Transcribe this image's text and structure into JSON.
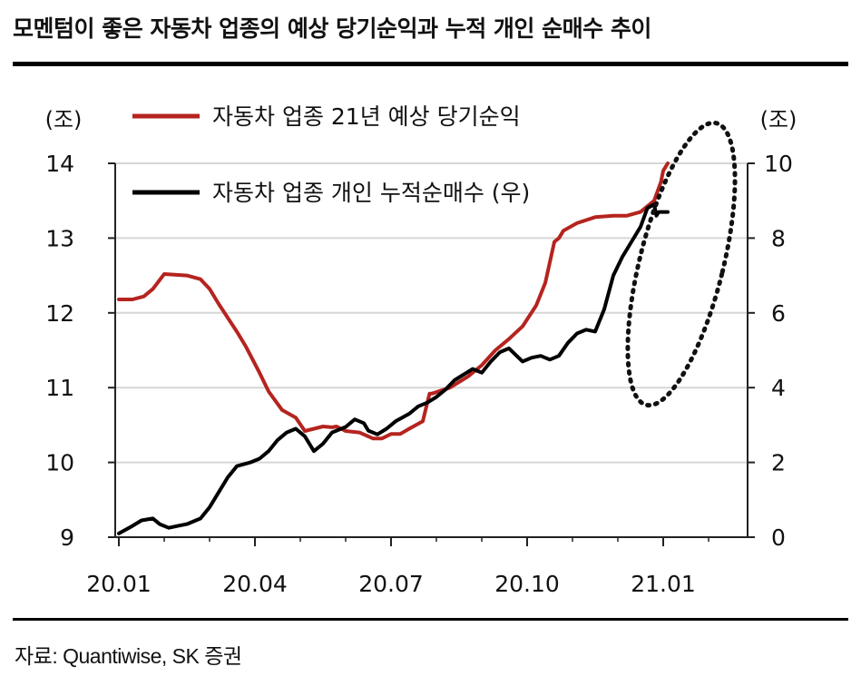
{
  "title": "모멘텀이 좋은 자동차 업종의 예상 당기순익과 누적 개인 순매수 추이",
  "source": "자료: Quantiwise, SK 증권",
  "chart_data": {
    "type": "line",
    "left_axis": {
      "unit": "(조)",
      "ylim": [
        9,
        14
      ],
      "ticks": [
        "9",
        "10",
        "11",
        "12",
        "13",
        "14"
      ]
    },
    "right_axis": {
      "unit": "(조)",
      "ylim": [
        0,
        10
      ],
      "ticks": [
        "0",
        "2",
        "4",
        "6",
        "8",
        "10"
      ]
    },
    "x_ticks": [
      "20.01",
      "20.04",
      "20.07",
      "20.10",
      "21.01"
    ],
    "grid": true,
    "legend_position": "top-left",
    "annotation": "dotted ellipse highlighting the recent surge (early 2021)",
    "series": [
      {
        "name": "자동차 업종 21년 예상 당기순익",
        "axis": "left",
        "color": "#b5241f",
        "x": [
          0,
          0.3,
          0.55,
          0.75,
          1.0,
          1.5,
          1.8,
          2.0,
          2.2,
          2.6,
          2.8,
          3.1,
          3.3,
          3.6,
          3.9,
          4.1,
          4.3,
          4.5,
          4.7,
          4.8,
          5.0,
          5.3,
          5.6,
          5.8,
          6.0,
          6.2,
          6.4,
          6.7,
          6.8,
          6.85,
          6.9,
          7.3,
          7.7,
          8.0,
          8.3,
          8.6,
          8.9,
          9.2,
          9.4,
          9.6,
          9.7,
          9.75,
          9.8,
          10.1,
          10.5,
          10.9,
          11.2,
          11.5,
          11.8,
          11.95,
          12.0,
          12.1
        ],
        "values": [
          12.18,
          12.18,
          12.22,
          12.32,
          12.52,
          12.5,
          12.45,
          12.32,
          12.12,
          11.75,
          11.55,
          11.2,
          10.95,
          10.7,
          10.6,
          10.42,
          10.45,
          10.48,
          10.47,
          10.48,
          10.42,
          10.4,
          10.32,
          10.32,
          10.38,
          10.38,
          10.45,
          10.55,
          10.8,
          10.92,
          10.92,
          11.0,
          11.15,
          11.3,
          11.5,
          11.65,
          11.82,
          12.1,
          12.4,
          12.95,
          13.0,
          13.05,
          13.1,
          13.2,
          13.28,
          13.3,
          13.3,
          13.35,
          13.5,
          13.75,
          13.9,
          14.0
        ]
      },
      {
        "name": "자동차 업종 개인 누적순매수 (우)",
        "axis": "right",
        "color": "#000000",
        "x": [
          0,
          0.3,
          0.5,
          0.75,
          0.9,
          1.1,
          1.3,
          1.5,
          1.8,
          2.0,
          2.2,
          2.4,
          2.6,
          2.9,
          3.1,
          3.3,
          3.5,
          3.7,
          3.9,
          4.1,
          4.2,
          4.3,
          4.5,
          4.7,
          5.0,
          5.2,
          5.4,
          5.5,
          5.7,
          5.9,
          6.1,
          6.4,
          6.6,
          6.8,
          7.0,
          7.2,
          7.4,
          7.6,
          7.8,
          8.0,
          8.2,
          8.4,
          8.6,
          8.9,
          9.1,
          9.3,
          9.5,
          9.7,
          9.9,
          10.1,
          10.3,
          10.5,
          10.7,
          10.9,
          11.1,
          11.3,
          11.5,
          11.65,
          11.8,
          11.85,
          11.9,
          12.0,
          12.1
        ],
        "values": [
          0.1,
          0.3,
          0.45,
          0.5,
          0.35,
          0.25,
          0.3,
          0.35,
          0.5,
          0.8,
          1.2,
          1.6,
          1.9,
          2.0,
          2.1,
          2.3,
          2.6,
          2.8,
          2.9,
          2.7,
          2.5,
          2.3,
          2.5,
          2.8,
          2.95,
          3.15,
          3.05,
          2.85,
          2.75,
          2.9,
          3.1,
          3.3,
          3.5,
          3.6,
          3.75,
          3.95,
          4.2,
          4.35,
          4.5,
          4.4,
          4.7,
          4.95,
          5.05,
          4.7,
          4.8,
          4.85,
          4.75,
          4.85,
          5.2,
          5.45,
          5.55,
          5.5,
          6.1,
          7.0,
          7.5,
          7.9,
          8.3,
          8.8,
          8.9,
          8.6,
          8.7,
          8.7,
          8.7
        ]
      }
    ]
  }
}
